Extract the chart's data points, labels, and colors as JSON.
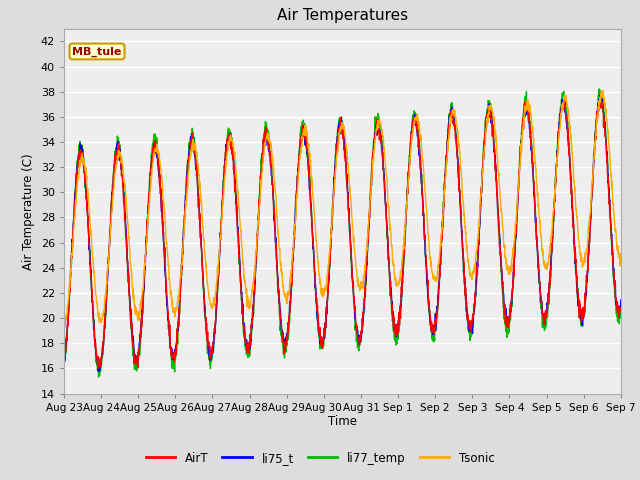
{
  "title": "Air Temperatures",
  "ylabel": "Air Temperature (C)",
  "xlabel": "Time",
  "annotation_text": "MB_tule",
  "annotation_bg": "#ffffcc",
  "annotation_border": "#cc9900",
  "annotation_text_color": "#990000",
  "ylim": [
    14,
    43
  ],
  "yticks": [
    14,
    16,
    18,
    20,
    22,
    24,
    26,
    28,
    30,
    32,
    34,
    36,
    38,
    40,
    42
  ],
  "bg_color": "#dddddd",
  "plot_bg_color": "#eeeeee",
  "legend_entries": [
    "AirT",
    "li75_t",
    "li77_temp",
    "Tsonic"
  ],
  "legend_colors": [
    "#ff0000",
    "#0000ee",
    "#00bb00",
    "#ffaa00"
  ],
  "line_width": 1.0,
  "xtick_labels": [
    "Aug 23",
    "Aug 24",
    "Aug 25",
    "Aug 26",
    "Aug 27",
    "Aug 28",
    "Aug 29",
    "Aug 30",
    "Aug 31",
    "Sep 1",
    "Sep 2",
    "Sep 3",
    "Sep 4",
    "Sep 5",
    "Sep 6",
    "Sep 7"
  ],
  "num_days": 15
}
